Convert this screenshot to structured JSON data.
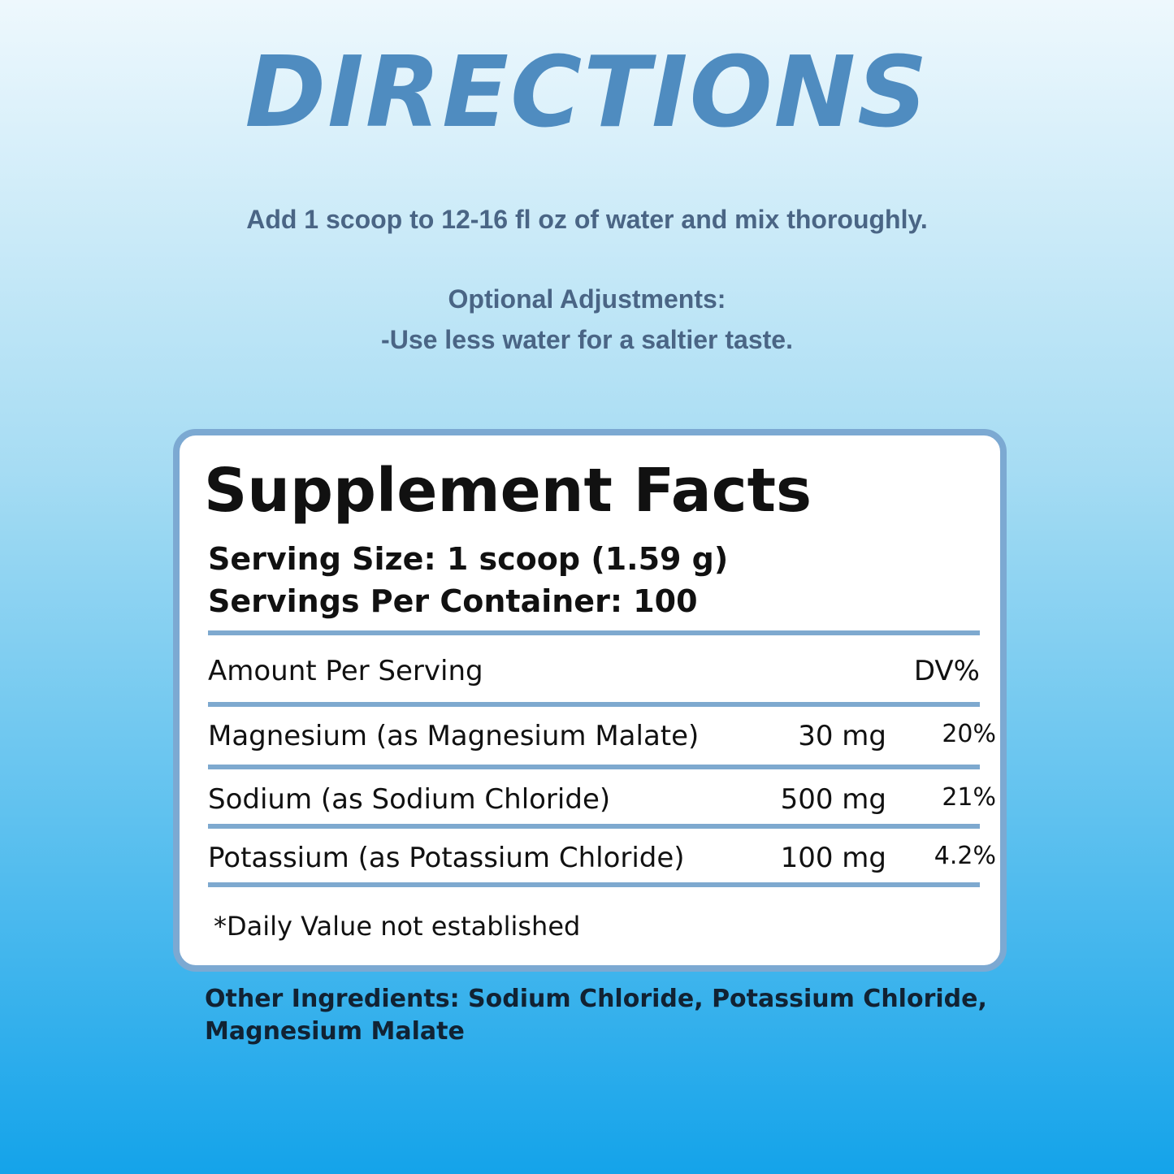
{
  "header": {
    "title": "DIRECTIONS"
  },
  "directions": {
    "instruction": "Add 1 scoop to 12-16 fl oz of water and mix thoroughly.",
    "optional_title": "Optional Adjustments:",
    "optional_note": "-Use less water for a saltier taste."
  },
  "facts": {
    "title": "Supplement Facts",
    "serving_size": "Serving Size: 1 scoop (1.59 g)",
    "servings_per_container": "Servings Per Container: 100",
    "header": {
      "label": "Amount Per Serving",
      "dv": "DV%"
    },
    "rows": [
      [
        "Magnesium (as Magnesium Malate)",
        "30 mg",
        "20%"
      ],
      [
        "Sodium (as Sodium Chloride)",
        "500 mg",
        "21%"
      ],
      [
        "Potassium (as Potassium Chloride)",
        "100 mg",
        "4.2%"
      ]
    ],
    "footnote": "*Daily Value not established"
  },
  "other_ingredients": {
    "line1": "Other Ingredients: Sodium Chloride, Potassium Chloride,",
    "line2": "Magnesium Malate"
  }
}
